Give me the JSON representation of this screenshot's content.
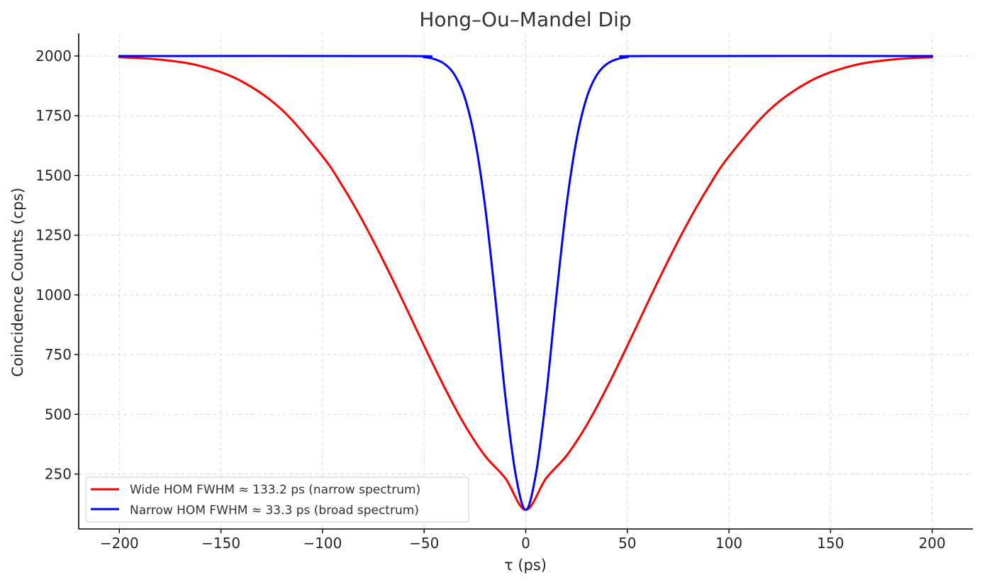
{
  "chart_data": {
    "type": "line",
    "title": "Hong–Ou–Mandel Dip",
    "xlabel": "τ (ps)",
    "ylabel": "Coincidence Counts (cps)",
    "xlim": [
      -220,
      220
    ],
    "ylim": [
      20,
      2095
    ],
    "xticks": [
      -200,
      -150,
      -100,
      -50,
      0,
      50,
      100,
      150,
      200
    ],
    "xtick_labels": [
      "−200",
      "−150",
      "−100",
      "−50",
      "0",
      "50",
      "100",
      "150",
      "200"
    ],
    "yticks": [
      250,
      500,
      750,
      1000,
      1250,
      1500,
      1750,
      2000
    ],
    "ytick_labels": [
      "250",
      "500",
      "750",
      "1000",
      "1250",
      "1500",
      "1750",
      "2000"
    ],
    "grid": true,
    "legend_position": "lower-left",
    "series": [
      {
        "name": "Wide HOM FWHM ≈ 133.2 ps (narrow spectrum)",
        "color": "#ff0000",
        "x": [
          -200,
          -180,
          -160,
          -140,
          -120,
          -100,
          -90,
          -80,
          -70,
          -60,
          -50,
          -40,
          -30,
          -20,
          -10,
          0,
          10,
          20,
          30,
          40,
          50,
          60,
          70,
          80,
          90,
          100,
          120,
          140,
          160,
          180,
          200
        ],
        "y": [
          1995,
          1985,
          1958,
          1895,
          1775,
          1580,
          1453,
          1306,
          1142,
          967,
          787,
          613,
          455,
          326,
          232,
          100,
          232,
          326,
          455,
          613,
          787,
          967,
          1142,
          1306,
          1453,
          1580,
          1775,
          1895,
          1958,
          1985,
          1995
        ]
      },
      {
        "name": "Narrow HOM FWHM ≈ 33.3 ps (broad spectrum)",
        "color": "#0000ff",
        "x": [
          -200,
          -60,
          -50,
          -45,
          -40,
          -35,
          -30,
          -25,
          -20,
          -15,
          -10,
          -5,
          0,
          5,
          10,
          15,
          20,
          25,
          30,
          35,
          40,
          45,
          50,
          60,
          200
        ],
        "y": [
          2000,
          2000,
          1995,
          1987,
          1967,
          1921,
          1826,
          1650,
          1370,
          989,
          573,
          250,
          100,
          250,
          573,
          989,
          1370,
          1650,
          1826,
          1921,
          1967,
          1987,
          1995,
          2000,
          2000
        ]
      }
    ]
  }
}
